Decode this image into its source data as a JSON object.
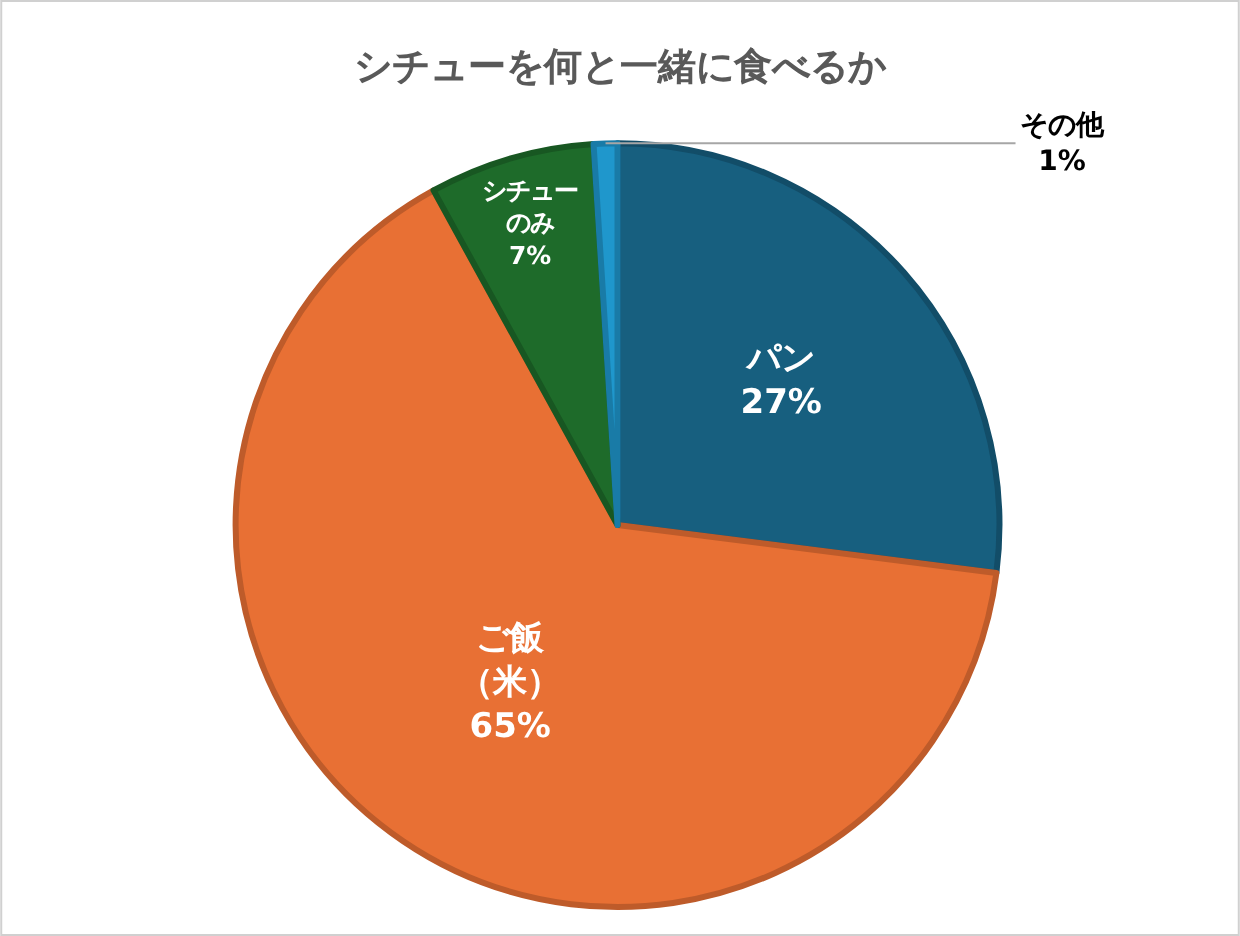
{
  "chart_data": {
    "type": "pie",
    "title": "シチューを何と一緒に食べるか",
    "categories": [
      "パン",
      "ご飯（米）",
      "シチューのみ",
      "その他"
    ],
    "values": [
      27,
      65,
      7,
      1
    ],
    "value_labels": [
      "27%",
      "65%",
      "7%",
      "1%"
    ],
    "colors": [
      "#175f7f",
      "#e87034",
      "#1e6b2a",
      "#1f97cc"
    ],
    "legend": false
  }
}
